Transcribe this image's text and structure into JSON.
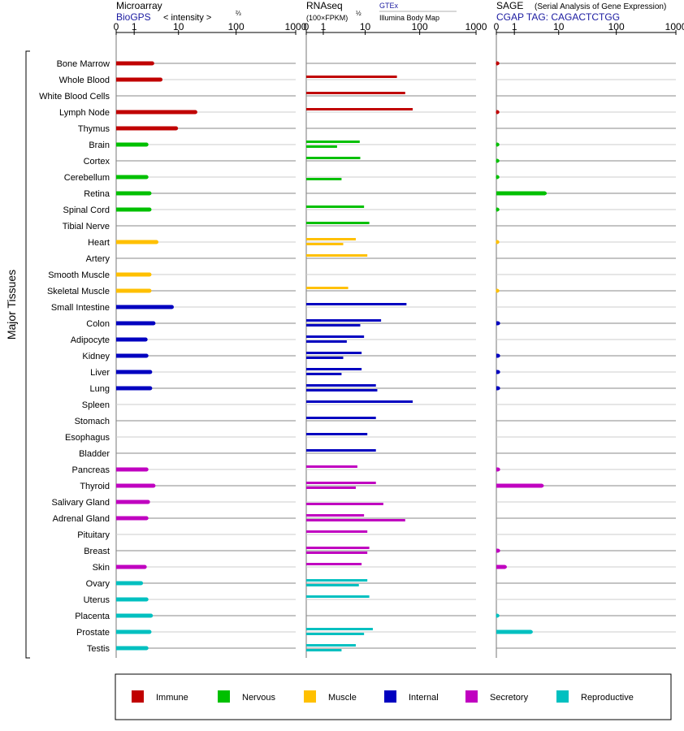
{
  "header": {
    "microarray": {
      "title": "Microarray",
      "subtitle": "BioGPS",
      "axis_note": "< intensity >",
      "axis_exp": "⅔"
    },
    "rnaseq": {
      "title": "RNAseq",
      "axis_note": "(100×FPKM)",
      "axis_exp": "½",
      "source1": "GTEx",
      "source2": "Illumina Body Map"
    },
    "sage": {
      "title": "SAGE",
      "title_note": "(Serial Analysis of Gene Expression)",
      "tag_line": "CGAP TAG: CAGACTCTGG"
    }
  },
  "y_group_label": "Major Tissues",
  "chart_data": {
    "type": "bar",
    "panels": [
      "Microarray",
      "RNAseq (GTEx)",
      "RNAseq (Illumina Body Map)",
      "SAGE"
    ],
    "axis_ticks": [
      "0",
      "1",
      "10",
      "100",
      "1000"
    ],
    "xlim": [
      0,
      1000
    ],
    "categories": [
      "Bone Marrow",
      "Whole Blood",
      "White Blood Cells",
      "Lymph Node",
      "Thymus",
      "Brain",
      "Cortex",
      "Cerebellum",
      "Retina",
      "Spinal Cord",
      "Tibial Nerve",
      "Heart",
      "Artery",
      "Smooth Muscle",
      "Skeletal Muscle",
      "Small Intestine",
      "Colon",
      "Adipocyte",
      "Kidney",
      "Liver",
      "Lung",
      "Spleen",
      "Stomach",
      "Esophagus",
      "Bladder",
      "Pancreas",
      "Thyroid",
      "Salivary Gland",
      "Adrenal Gland",
      "Pituitary",
      "Breast",
      "Skin",
      "Ovary",
      "Uterus",
      "Placenta",
      "Prostate",
      "Testis"
    ],
    "groups": [
      "Immune",
      "Immune",
      "Immune",
      "Immune",
      "Immune",
      "Nervous",
      "Nervous",
      "Nervous",
      "Nervous",
      "Nervous",
      "Nervous",
      "Muscle",
      "Muscle",
      "Muscle",
      "Muscle",
      "Internal",
      "Internal",
      "Internal",
      "Internal",
      "Internal",
      "Internal",
      "Internal",
      "Internal",
      "Internal",
      "Internal",
      "Secretory",
      "Secretory",
      "Secretory",
      "Secretory",
      "Secretory",
      "Secretory",
      "Secretory",
      "Reproductive",
      "Reproductive",
      "Reproductive",
      "Reproductive",
      "Reproductive"
    ],
    "series": [
      {
        "name": "BioGPS",
        "values": [
          3.0,
          4.5,
          null,
          20,
          9,
          2.2,
          null,
          2.2,
          2.6,
          2.6,
          null,
          3.7,
          null,
          2.6,
          2.6,
          7.5,
          3.2,
          2.1,
          2.2,
          2.7,
          2.7,
          null,
          null,
          null,
          null,
          2.2,
          3.2,
          2.4,
          2.2,
          null,
          null,
          2.0,
          1.6,
          2.2,
          2.8,
          2.6,
          2.2
        ]
      },
      {
        "name": "GTEx",
        "values": [
          null,
          39,
          55,
          75,
          null,
          7.8,
          8.0,
          null,
          null,
          9.5,
          12,
          6.5,
          11,
          null,
          4.5,
          58,
          20,
          9.5,
          8.5,
          8.5,
          16,
          75,
          16,
          11,
          16,
          7.0,
          16,
          null,
          9.5,
          11,
          12,
          8.5,
          11,
          12,
          null,
          14,
          6.5
        ]
      },
      {
        "name": "Illumina Body Map",
        "values": [
          null,
          null,
          null,
          null,
          null,
          2.5,
          null,
          3.2,
          null,
          null,
          null,
          3.5,
          null,
          null,
          null,
          null,
          8.0,
          4.2,
          3.5,
          3.2,
          17,
          null,
          null,
          null,
          null,
          null,
          6.5,
          22,
          55,
          null,
          11,
          null,
          7.5,
          null,
          null,
          9.5,
          3.2
        ]
      },
      {
        "name": "SAGE",
        "values": [
          0.05,
          null,
          null,
          0.05,
          null,
          0.05,
          0.05,
          0.05,
          5.5,
          0.05,
          null,
          0.03,
          null,
          null,
          0.03,
          null,
          0.08,
          null,
          0.08,
          0.08,
          0.08,
          null,
          null,
          null,
          null,
          0.08,
          4.8,
          null,
          null,
          null,
          0.08,
          0.4,
          null,
          null,
          0.05,
          2.8,
          null
        ]
      }
    ]
  },
  "legend": [
    {
      "label": "Immune",
      "color": "#c00000"
    },
    {
      "label": "Nervous",
      "color": "#00c000"
    },
    {
      "label": "Muscle",
      "color": "#ffc000"
    },
    {
      "label": "Internal",
      "color": "#0000c0"
    },
    {
      "label": "Secretory",
      "color": "#c000c0"
    },
    {
      "label": "Reproductive",
      "color": "#00c0c0"
    }
  ]
}
